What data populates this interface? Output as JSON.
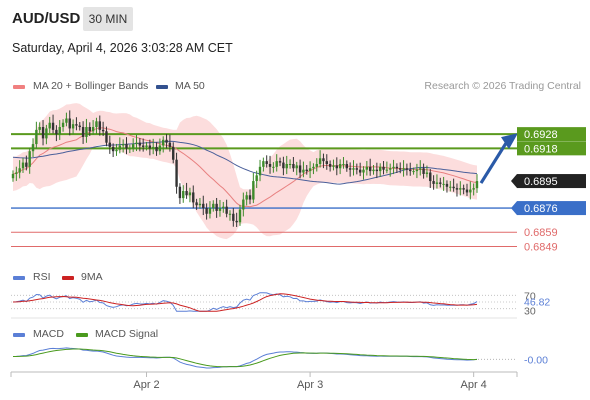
{
  "header": {
    "pair": "AUD/USD",
    "timeframe": "30 MIN",
    "datetime": "Saturday, April 4, 2026 3:03:28 AM CET"
  },
  "legend": {
    "ma20_bb": "MA 20 + Bollinger Bands",
    "ma50": "MA 50",
    "credit": "Research © 2026 Trading Central"
  },
  "colors": {
    "resistance": "#5a9a1e",
    "support": "#3a6fc8",
    "minor_support": "#e06a6a",
    "bollinger_fill": "#fbd7d7",
    "ma20": "#e88080",
    "ma50": "#4a5f9a",
    "candle_up": "#3d8b2a",
    "candle_down": "#333333",
    "arrow": "#2a5aa8",
    "current_price_label": "#222222",
    "rsi": "#5b7fd6",
    "rsi_9ma": "#cc2222",
    "macd": "#5b7fd6",
    "macd_signal": "#4a9a1e"
  },
  "rsi_panel": {
    "label": "RSI",
    "ma_label": "9MA",
    "value": "46.82",
    "level_high": "70",
    "level_low": "30"
  },
  "macd_panel": {
    "label": "MACD",
    "signal_label": "MACD Signal",
    "value": "-0.00"
  },
  "x_axis": {
    "labels": [
      "Apr 2",
      "Apr 3",
      "Apr 4"
    ]
  },
  "chart_data": {
    "type": "candlestick",
    "price_levels": [
      {
        "value": 0.6928,
        "label": "0.6928",
        "role": "resistance"
      },
      {
        "value": 0.6918,
        "label": "0.6918",
        "role": "resistance"
      },
      {
        "value": 0.6895,
        "label": "0.6895",
        "role": "current"
      },
      {
        "value": 0.6876,
        "label": "0.6876",
        "role": "support"
      },
      {
        "value": 0.6859,
        "label": "0.6859",
        "role": "minor_support"
      },
      {
        "value": 0.6849,
        "label": "0.6849",
        "role": "minor_support"
      }
    ],
    "ylim": [
      0.6843,
      0.6952
    ],
    "close": [
      0.69,
      0.6901,
      0.6904,
      0.6908,
      0.6905,
      0.6916,
      0.6921,
      0.6931,
      0.6933,
      0.6925,
      0.6932,
      0.6936,
      0.6931,
      0.6928,
      0.6933,
      0.6936,
      0.6939,
      0.6932,
      0.6935,
      0.6934,
      0.6933,
      0.6926,
      0.6933,
      0.693,
      0.6933,
      0.6937,
      0.6931,
      0.693,
      0.6922,
      0.6919,
      0.6916,
      0.6917,
      0.692,
      0.6921,
      0.6918,
      0.6918,
      0.6921,
      0.6922,
      0.692,
      0.6919,
      0.692,
      0.6918,
      0.6919,
      0.6916,
      0.692,
      0.6924,
      0.6922,
      0.6919,
      0.691,
      0.6891,
      0.6883,
      0.6888,
      0.6885,
      0.6887,
      0.688,
      0.6878,
      0.6879,
      0.6876,
      0.6872,
      0.6876,
      0.6879,
      0.6874,
      0.6876,
      0.6877,
      0.6872,
      0.6872,
      0.6867,
      0.6866,
      0.6875,
      0.6882,
      0.6885,
      0.6882,
      0.6895,
      0.6899,
      0.6905,
      0.6909,
      0.6907,
      0.6905,
      0.6905,
      0.6909,
      0.6908,
      0.6904,
      0.6907,
      0.6907,
      0.6904,
      0.6906,
      0.6901,
      0.6903,
      0.6902,
      0.6904,
      0.6905,
      0.6907,
      0.6911,
      0.6909,
      0.6907,
      0.6905,
      0.6906,
      0.6904,
      0.6907,
      0.6907,
      0.6904,
      0.6903,
      0.6904,
      0.6903,
      0.6901,
      0.6903,
      0.6905,
      0.6902,
      0.6903,
      0.6902,
      0.6905,
      0.6903,
      0.6903,
      0.6904,
      0.6905,
      0.6904,
      0.6903,
      0.6904,
      0.6903,
      0.6902,
      0.6902,
      0.6903,
      0.6904,
      0.69,
      0.6901,
      0.6895,
      0.6893,
      0.6894,
      0.6893,
      0.6893,
      0.6891,
      0.6891,
      0.689,
      0.6889,
      0.689,
      0.6889,
      0.6887,
      0.6889,
      0.689,
      0.6895
    ],
    "projection": {
      "from": 0.6895,
      "to": 0.6928
    }
  }
}
